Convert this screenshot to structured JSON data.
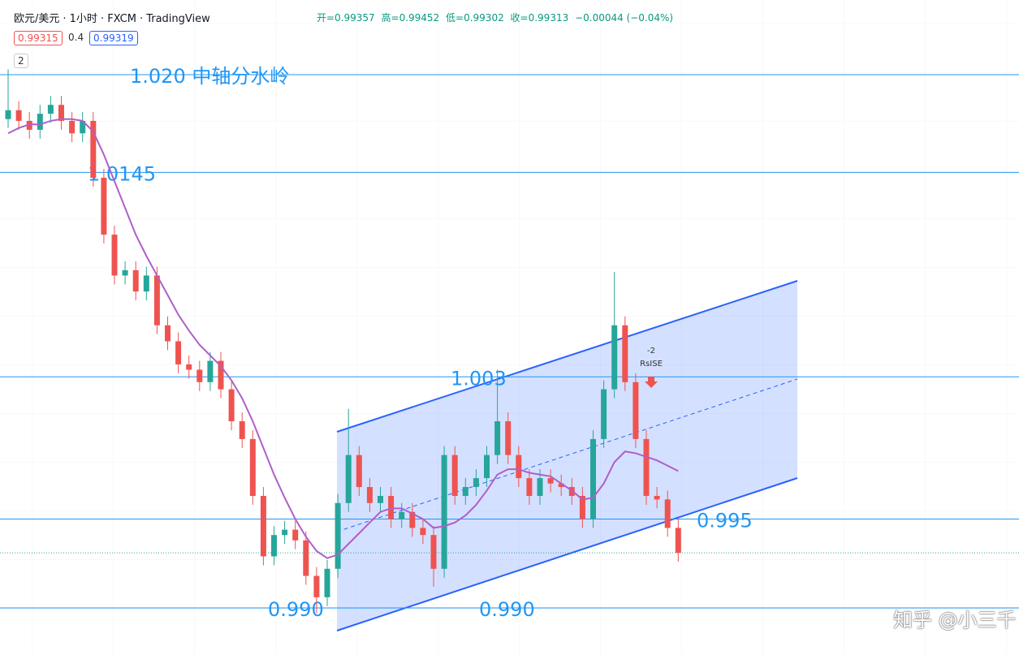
{
  "header": {
    "symbol": "欧元/美元",
    "interval": "1小时",
    "broker": "FXCM",
    "platform": "TradingView",
    "ohlc": [
      "开=0.99357",
      "高=0.99452",
      "低=0.99302",
      "收=0.99313",
      "−0.00044 (−0.04%)"
    ],
    "bid": "0.99315",
    "spread": "0.4",
    "ask": "0.99319",
    "indicators": "2"
  },
  "chart_data": {
    "type": "candlestick",
    "ylim": [
      0.98735,
      1.0242
    ],
    "grid": true,
    "up_color": "#26a69a",
    "down_color": "#ef5350",
    "open": [
      1.0175,
      1.018,
      1.0174,
      1.0169,
      1.0178,
      1.0183,
      1.0174,
      1.0167,
      1.0174,
      1.0142,
      1.011,
      1.0087,
      1.009,
      1.0078,
      1.0087,
      1.0059,
      1.005,
      1.0037,
      1.0034,
      1.0027,
      1.0039,
      1.0023,
      1.0005,
      0.9995,
      0.9963,
      0.9929,
      0.9941,
      0.9944,
      0.9938,
      0.9918,
      0.9906,
      0.9922,
      0.9959,
      0.9986,
      0.9968,
      0.9959,
      0.9963,
      0.995,
      0.9954,
      0.9945,
      0.9941,
      0.9922,
      0.9986,
      0.9963,
      0.9968,
      0.9973,
      0.9986,
      1.0005,
      0.9986,
      0.9973,
      0.9963,
      0.9973,
      0.997,
      0.9968,
      0.9963,
      0.995,
      0.9995,
      1.0023,
      1.0059,
      1.0027,
      0.9995,
      0.9963,
      0.9961,
      0.9945
    ],
    "high": [
      1.0203,
      1.0185,
      1.0179,
      1.0183,
      1.0188,
      1.0188,
      1.0179,
      1.0179,
      1.0179,
      1.0147,
      1.0115,
      1.0095,
      1.0095,
      1.0092,
      1.0092,
      1.0064,
      1.0055,
      1.0042,
      1.0039,
      1.0044,
      1.0044,
      1.0028,
      1.001,
      1.0,
      0.9968,
      0.9946,
      0.9949,
      0.9949,
      0.9943,
      0.9923,
      0.9927,
      0.9964,
      1.0012,
      0.9991,
      0.9973,
      0.9968,
      0.9968,
      0.9959,
      0.9959,
      0.995,
      0.9946,
      0.9991,
      0.9991,
      0.9973,
      0.9978,
      0.9991,
      1.0034,
      1.001,
      0.9991,
      0.9978,
      0.9978,
      0.9978,
      0.9975,
      0.9973,
      0.9968,
      1.0,
      1.0028,
      1.0089,
      1.0064,
      1.0032,
      1.0,
      0.9968,
      0.9966,
      0.995
    ],
    "low": [
      1.017,
      1.0169,
      1.0164,
      1.0164,
      1.0173,
      1.0169,
      1.0162,
      1.0162,
      1.0137,
      1.0105,
      1.0082,
      1.0082,
      1.0073,
      1.0073,
      1.0054,
      1.0045,
      1.0032,
      1.0029,
      1.0022,
      1.0022,
      1.0018,
      1.0,
      0.999,
      0.9958,
      0.9924,
      0.9924,
      0.9936,
      0.9933,
      0.9913,
      0.9897,
      0.9901,
      0.9917,
      0.9954,
      0.9963,
      0.9954,
      0.9954,
      0.9945,
      0.9945,
      0.994,
      0.9936,
      0.9912,
      0.9917,
      0.9958,
      0.9958,
      0.9963,
      0.9968,
      0.9981,
      0.9981,
      0.9968,
      0.9958,
      0.9958,
      0.9965,
      0.9963,
      0.9958,
      0.9945,
      0.9945,
      0.999,
      1.0018,
      1.0022,
      0.999,
      0.9958,
      0.9956,
      0.994,
      0.9926
    ],
    "close": [
      1.018,
      1.0174,
      1.0169,
      1.0178,
      1.0183,
      1.0174,
      1.0167,
      1.0174,
      1.0142,
      1.011,
      1.0087,
      1.009,
      1.0078,
      1.0087,
      1.0059,
      1.005,
      1.0037,
      1.0034,
      1.0027,
      1.0039,
      1.0023,
      1.0005,
      0.9995,
      0.9963,
      0.9929,
      0.9941,
      0.9944,
      0.9938,
      0.9918,
      0.9906,
      0.9922,
      0.9959,
      0.9986,
      0.9968,
      0.9959,
      0.9963,
      0.995,
      0.9954,
      0.9945,
      0.9941,
      0.9922,
      0.9986,
      0.9963,
      0.9968,
      0.9973,
      0.9986,
      1.0005,
      0.9986,
      0.9973,
      0.9963,
      0.9973,
      0.997,
      0.9968,
      0.9963,
      0.995,
      0.9995,
      1.0023,
      1.0059,
      1.0027,
      0.9995,
      0.9963,
      0.9961,
      0.9945,
      0.9931
    ],
    "moving_average": {
      "color": "#b05fc8",
      "values": [
        1.0167,
        1.017,
        1.0172,
        1.0172,
        1.0174,
        1.0175,
        1.0175,
        1.0174,
        1.0168,
        1.0155,
        1.014,
        1.0125,
        1.011,
        1.0098,
        1.0087,
        1.0076,
        1.0065,
        1.0056,
        1.0048,
        1.0042,
        1.0036,
        1.0028,
        1.0018,
        1.0005,
        0.999,
        0.9975,
        0.9962,
        0.995,
        0.994,
        0.9932,
        0.9928,
        0.993,
        0.9936,
        0.9942,
        0.9948,
        0.9954,
        0.9956,
        0.9956,
        0.9953,
        0.995,
        0.9945,
        0.9946,
        0.9948,
        0.9952,
        0.9958,
        0.9966,
        0.9975,
        0.9978,
        0.9978,
        0.9976,
        0.9975,
        0.9974,
        0.997,
        0.9966,
        0.9961,
        0.9962,
        0.997,
        0.9982,
        0.9988,
        0.9987,
        0.9985,
        0.9983,
        0.998,
        0.9977
      ]
    },
    "levels": [
      {
        "value": 1.02,
        "labels": [
          "1.020 中轴分水岭"
        ]
      },
      {
        "value": 1.0145,
        "labels": [
          "1.0145"
        ]
      },
      {
        "value": 1.003,
        "labels": [
          "1.003"
        ]
      },
      {
        "value": 0.995,
        "labels": [
          "0.995"
        ]
      },
      {
        "value": 0.99,
        "labels": [
          "0.990",
          "0.990"
        ]
      }
    ],
    "level_color": "#2196f3",
    "signal": [
      "-2",
      "RsISE"
    ]
  },
  "watermark": "知乎 @小三千"
}
